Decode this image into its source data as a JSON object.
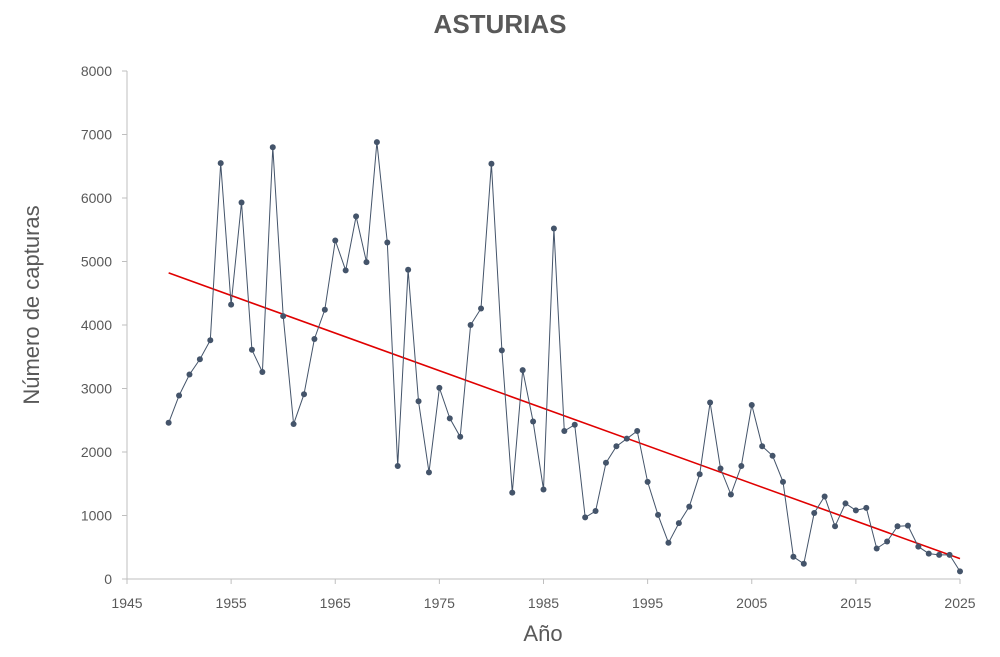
{
  "chart_data": {
    "type": "line",
    "title": "ASTURIAS",
    "xlabel": "Año",
    "ylabel": "Número de capturas",
    "xlim": [
      1945,
      2025
    ],
    "ylim": [
      0,
      8000
    ],
    "xticks": [
      1945,
      1955,
      1965,
      1975,
      1985,
      1995,
      2005,
      2015,
      2025
    ],
    "yticks": [
      0,
      1000,
      2000,
      3000,
      4000,
      5000,
      6000,
      7000,
      8000
    ],
    "grid": false,
    "series": [
      {
        "color": "#44546a",
        "marker": "circle",
        "x": [
          1949,
          1950,
          1951,
          1952,
          1953,
          1954,
          1955,
          1956,
          1957,
          1958,
          1959,
          1960,
          1961,
          1962,
          1963,
          1964,
          1965,
          1966,
          1967,
          1968,
          1969,
          1970,
          1971,
          1972,
          1973,
          1974,
          1975,
          1976,
          1977,
          1978,
          1979,
          1980,
          1981,
          1982,
          1983,
          1984,
          1985,
          1986,
          1987,
          1988,
          1989,
          1990,
          1991,
          1992,
          1993,
          1994,
          1995,
          1996,
          1997,
          1998,
          1999,
          2000,
          2001,
          2002,
          2003,
          2004,
          2005,
          2006,
          2007,
          2008,
          2009,
          2010,
          2011,
          2012,
          2013,
          2014,
          2015,
          2016,
          2017,
          2018,
          2019,
          2020,
          2021,
          2022,
          2023,
          2024,
          2025
        ],
        "y": [
          2460,
          2890,
          3220,
          3460,
          3760,
          6550,
          4320,
          5930,
          3610,
          3260,
          6800,
          4140,
          2440,
          2910,
          3780,
          4240,
          5330,
          4860,
          5710,
          4990,
          6880,
          5300,
          1780,
          4870,
          2800,
          1680,
          3010,
          2530,
          2240,
          4000,
          4260,
          6540,
          3600,
          1360,
          3290,
          2480,
          1410,
          5520,
          2330,
          2430,
          970,
          1070,
          1830,
          2090,
          2210,
          2330,
          1530,
          1010,
          570,
          880,
          1140,
          1650,
          2780,
          1740,
          1330,
          1780,
          2740,
          2090,
          1940,
          1530,
          350,
          240,
          1040,
          1300,
          830,
          1190,
          1080,
          1120,
          480,
          590,
          830,
          840,
          510,
          400,
          380,
          380,
          120
        ]
      },
      {
        "type": "trendline",
        "color": "#e00000",
        "x": [
          1949,
          2025
        ],
        "y": [
          4820,
          320
        ]
      }
    ]
  }
}
